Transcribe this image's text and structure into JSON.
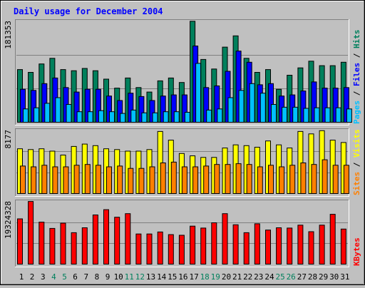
{
  "chart_data": {
    "title": "Daily usage for December 2004",
    "days": [
      "1",
      "2",
      "3",
      "4",
      "5",
      "6",
      "7",
      "8",
      "9",
      "10",
      "11",
      "12",
      "13",
      "14",
      "15",
      "16",
      "17",
      "18",
      "19",
      "20",
      "21",
      "22",
      "23",
      "24",
      "25",
      "26",
      "27",
      "28",
      "29",
      "30",
      "31"
    ],
    "weekend_days": [
      "4",
      "5",
      "11",
      "12",
      "18",
      "19",
      "25",
      "26"
    ],
    "colors": {
      "hits": "#00805c",
      "files": "#0000ff",
      "pages": "#00c0ff",
      "visits": "#ffff00",
      "sites": "#ff8000",
      "kbytes": "#ff0000",
      "title": "#0000ff",
      "weekend_label": "#00805c",
      "day_label": "#000000"
    },
    "panels": [
      {
        "type": "bar",
        "max_label": "181353",
        "ylim": [
          0,
          181353
        ],
        "legend": [
          {
            "name": "Pages",
            "color": "#00c0ff"
          },
          {
            "name": "Files",
            "color": "#0000ff"
          },
          {
            "name": "Hits",
            "color": "#00805c"
          }
        ],
        "series": [
          {
            "name": "Hits",
            "color": "#00805c",
            "values": [
              95000,
              90000,
              105000,
              115000,
              95000,
              93000,
              97000,
              93000,
              78000,
              62000,
              80000,
              63000,
              55000,
              75000,
              80000,
              72000,
              181000,
              113000,
              96000,
              135000,
              155000,
              115000,
              90000,
              95000,
              60000,
              85000,
              98000,
              110000,
              102000,
              102000,
              108000
            ]
          },
          {
            "name": "Files",
            "color": "#0000ff",
            "values": [
              60000,
              58000,
              70000,
              80000,
              63000,
              55000,
              60000,
              60000,
              48000,
              40000,
              53000,
              47000,
              40000,
              48000,
              50000,
              50000,
              137000,
              63000,
              66000,
              92000,
              128000,
              108000,
              68000,
              70000,
              48000,
              50000,
              57000,
              73000,
              62000,
              62000,
              63000
            ]
          },
          {
            "name": "Pages",
            "color": "#00c0ff",
            "values": [
              25000,
              27000,
              35000,
              45000,
              33000,
              20000,
              20000,
              22000,
              20000,
              17000,
              23000,
              18000,
              18000,
              20000,
              20000,
              19000,
              106000,
              23000,
              25000,
              45000,
              58000,
              70000,
              53000,
              33000,
              28000,
              28000,
              26000,
              27000,
              27000,
              27000,
              25000
            ]
          }
        ]
      },
      {
        "type": "bar",
        "max_label": "8177",
        "ylim": [
          0,
          8177
        ],
        "legend": [
          {
            "name": "Sites",
            "color": "#ff8000"
          },
          {
            "name": "Visits",
            "color": "#ffff00"
          }
        ],
        "series": [
          {
            "name": "Visits",
            "color": "#ffff00",
            "values": [
              5800,
              5700,
              5800,
              5500,
              5000,
              6100,
              6400,
              6200,
              5800,
              5700,
              5500,
              5500,
              5700,
              8000,
              6900,
              5200,
              4900,
              4700,
              4700,
              5900,
              6300,
              6200,
              6000,
              6800,
              6300,
              5900,
              8000,
              7700,
              8100,
              6900,
              6600
            ]
          },
          {
            "name": "Sites",
            "color": "#ff8000",
            "values": [
              3600,
              3500,
              3700,
              3500,
              3500,
              3700,
              3800,
              3700,
              3500,
              3600,
              3300,
              3300,
              3500,
              4000,
              4100,
              3500,
              3500,
              3600,
              3800,
              3800,
              3900,
              3800,
              3500,
              3700,
              3500,
              3700,
              4000,
              3800,
              4400,
              3700,
              3700
            ]
          }
        ]
      },
      {
        "type": "bar",
        "max_label": "19324328",
        "ylim": [
          0,
          19324328
        ],
        "legend": [
          {
            "name": "KBytes",
            "color": "#ff0000"
          }
        ],
        "series": [
          {
            "name": "KBytes",
            "color": "#ff0000",
            "values": [
              14000000,
              19300000,
              13000000,
              11100000,
              12700000,
              9800000,
              11300000,
              15200000,
              16800000,
              14500000,
              15600000,
              9400000,
              9400000,
              10000000,
              9200000,
              9000000,
              11800000,
              11200000,
              12800000,
              15600000,
              12200000,
              9800000,
              12500000,
              10600000,
              11300000,
              11200000,
              12100000,
              10100000,
              12100000,
              15400000,
              10900000
            ]
          }
        ]
      }
    ]
  }
}
